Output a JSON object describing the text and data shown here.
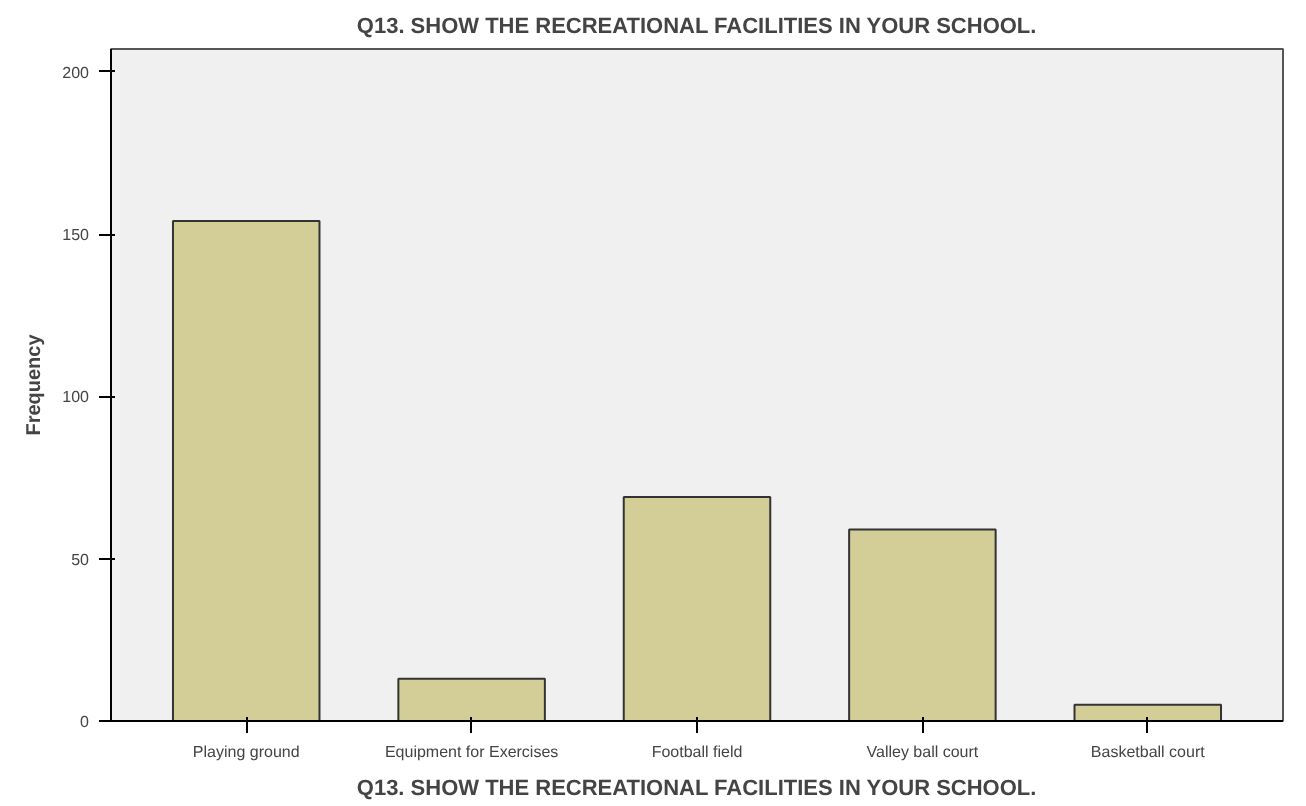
{
  "chart_data": {
    "type": "bar",
    "title": "Q13. SHOW THE RECREATIONAL FACILITIES IN YOUR SCHOOL.",
    "xlabel": "Q13. SHOW THE RECREATIONAL FACILITIES IN YOUR SCHOOL.",
    "ylabel": "Frequency",
    "categories": [
      "Playing ground",
      "Equipment for Exercises",
      "Football field",
      "Valley ball court",
      "Basketball court"
    ],
    "values": [
      154,
      13,
      69,
      59,
      5
    ],
    "color": "#d3ce97",
    "ylim": [
      0,
      207
    ],
    "yticks": [
      0,
      50,
      100,
      150,
      200
    ],
    "grid": false
  }
}
